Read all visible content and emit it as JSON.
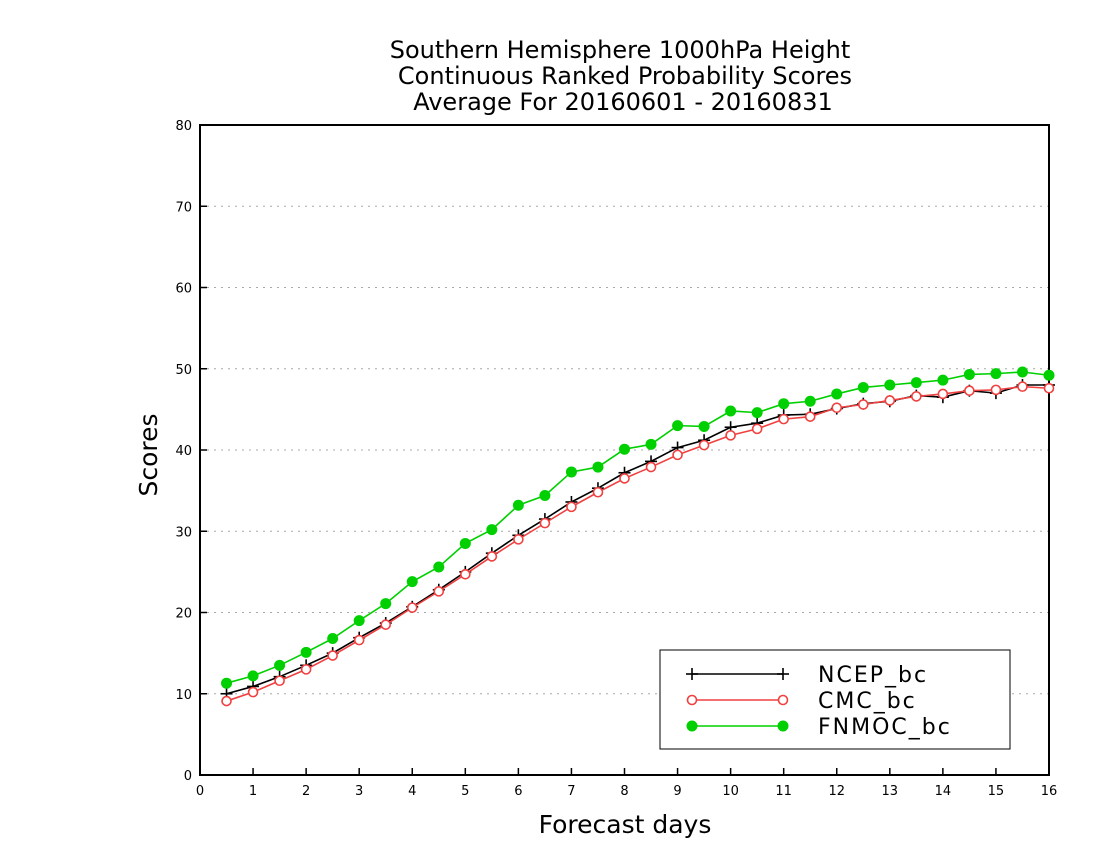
{
  "chart_data": {
    "type": "line",
    "title": [
      "Southern Hemisphere 1000hPa Height",
      "Continuous Ranked Probability Scores",
      "Average For 20160601 - 20160831"
    ],
    "xlabel": "Forecast days",
    "ylabel": "Scores",
    "xlim": [
      0,
      16
    ],
    "ylim": [
      0,
      80
    ],
    "x_ticks": [
      0,
      1,
      2,
      3,
      4,
      5,
      6,
      7,
      8,
      9,
      10,
      11,
      12,
      13,
      14,
      15,
      16
    ],
    "y_ticks": [
      0,
      10,
      20,
      30,
      40,
      50,
      60,
      70,
      80
    ],
    "grid": "horizontal dotted",
    "legend_position": "bottom-right",
    "x": [
      0.5,
      1,
      1.5,
      2,
      2.5,
      3,
      3.5,
      4,
      4.5,
      5,
      5.5,
      6,
      6.5,
      7,
      7.5,
      8,
      8.5,
      9,
      9.5,
      10,
      10.5,
      11,
      11.5,
      12,
      12.5,
      13,
      13.5,
      14,
      14.5,
      15,
      15.5,
      16
    ],
    "series": [
      {
        "name": "NCEP_bc",
        "color": "#000000",
        "marker": "plus",
        "values": [
          10.0,
          10.9,
          12.1,
          13.5,
          15.0,
          16.9,
          18.7,
          20.7,
          22.8,
          25.0,
          27.3,
          29.5,
          31.5,
          33.6,
          35.3,
          37.2,
          38.6,
          40.3,
          41.2,
          42.8,
          43.3,
          44.3,
          44.4,
          45.1,
          45.7,
          46.0,
          46.7,
          46.5,
          47.3,
          47.0,
          48.0,
          48.0
        ]
      },
      {
        "name": "CMC_bc",
        "color": "#f04040",
        "marker": "open-circle",
        "values": [
          9.1,
          10.2,
          11.6,
          13.0,
          14.7,
          16.6,
          18.5,
          20.6,
          22.6,
          24.7,
          26.9,
          29.0,
          31.0,
          33.0,
          34.8,
          36.5,
          37.9,
          39.4,
          40.6,
          41.8,
          42.6,
          43.8,
          44.1,
          45.2,
          45.6,
          46.1,
          46.6,
          46.9,
          47.3,
          47.4,
          47.8,
          47.6
        ]
      },
      {
        "name": "FNMOC_bc",
        "color": "#00d000",
        "marker": "filled-circle",
        "values": [
          11.3,
          12.2,
          13.5,
          15.1,
          16.8,
          19.0,
          21.1,
          23.8,
          25.6,
          28.5,
          30.2,
          33.2,
          34.4,
          37.3,
          37.9,
          40.1,
          40.7,
          43.0,
          42.9,
          44.8,
          44.6,
          45.7,
          46.0,
          46.9,
          47.7,
          48.0,
          48.3,
          48.6,
          49.3,
          49.4,
          49.6,
          49.2
        ]
      }
    ]
  }
}
